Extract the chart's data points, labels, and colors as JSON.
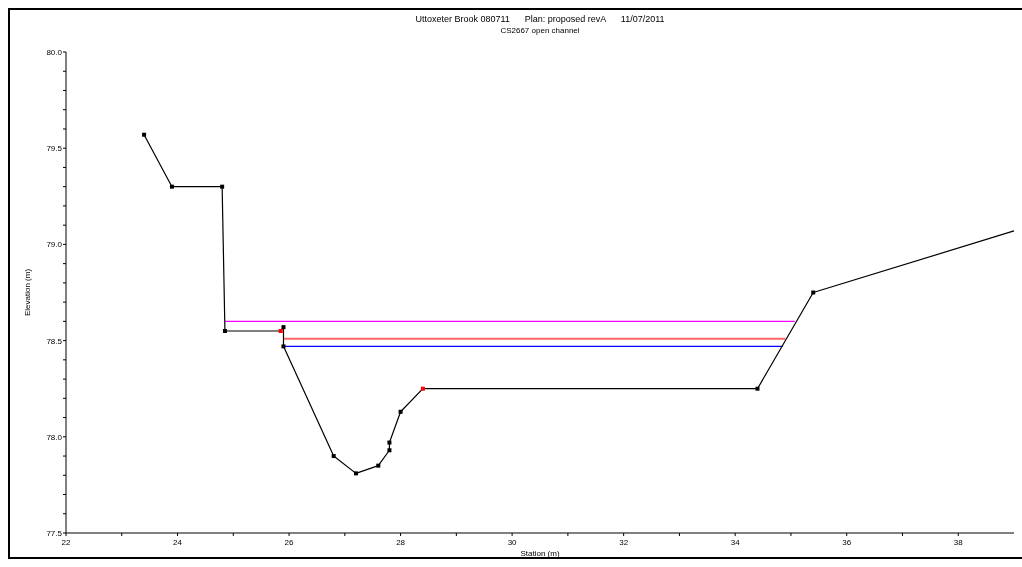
{
  "chart_data": {
    "type": "line",
    "title": "Uttoxeter Brook 080711      Plan: proposed revA      11/07/2011",
    "subtitle": "CS2667 open channel",
    "xlabel": "Station (m)",
    "ylabel": "Elevation (m)",
    "xlim": [
      22,
      39
    ],
    "ylim": [
      77.5,
      80.0
    ],
    "xticks": [
      22,
      {
        "value": 23,
        "label": null
      },
      24,
      {
        "value": 25,
        "label": null
      },
      26,
      {
        "value": 27,
        "label": null
      },
      28,
      {
        "value": 29,
        "label": null
      },
      30,
      {
        "value": 31,
        "label": null
      },
      32,
      {
        "value": 33,
        "label": null
      },
      34,
      {
        "value": 35,
        "label": null
      },
      36,
      {
        "value": 37,
        "label": null
      },
      38
    ],
    "yticks": [
      {
        "value": 77.5,
        "label": "77.5"
      },
      {
        "value": 77.6,
        "label": null
      },
      {
        "value": 77.7,
        "label": null
      },
      {
        "value": 77.8,
        "label": null
      },
      {
        "value": 77.9,
        "label": null
      },
      {
        "value": 78.0,
        "label": "78.0"
      },
      {
        "value": 78.1,
        "label": null
      },
      {
        "value": 78.2,
        "label": null
      },
      {
        "value": 78.3,
        "label": null
      },
      {
        "value": 78.4,
        "label": null
      },
      {
        "value": 78.5,
        "label": "78.5"
      },
      {
        "value": 78.6,
        "label": null
      },
      {
        "value": 78.7,
        "label": null
      },
      {
        "value": 78.8,
        "label": null
      },
      {
        "value": 78.9,
        "label": null
      },
      {
        "value": 79.0,
        "label": "79.0"
      },
      {
        "value": 79.1,
        "label": null
      },
      {
        "value": 79.2,
        "label": null
      },
      {
        "value": 79.3,
        "label": null
      },
      {
        "value": 79.4,
        "label": null
      },
      {
        "value": 79.5,
        "label": "79.5"
      },
      {
        "value": 79.6,
        "label": null
      },
      {
        "value": 79.7,
        "label": null
      },
      {
        "value": 79.8,
        "label": null
      },
      {
        "value": 79.9,
        "label": null
      },
      {
        "value": 80.0,
        "label": "80.0"
      }
    ],
    "grid": false,
    "line_style": "solid",
    "series": [
      {
        "type": "line",
        "color": "#ff00ff",
        "x": [
          24.85,
          35.07
        ],
        "values": [
          78.6,
          78.6
        ],
        "marker": "none"
      },
      {
        "type": "line",
        "color": "#ff6666",
        "x": [
          25.9,
          34.9
        ],
        "values": [
          78.51,
          78.51
        ],
        "marker": "none"
      },
      {
        "type": "line",
        "color": "#0000ff",
        "x": [
          25.9,
          34.85
        ],
        "values": [
          78.47,
          78.47
        ],
        "marker": "none"
      },
      {
        "type": "line",
        "color": "#000000",
        "marker": "square",
        "x": [
          23.4,
          23.9,
          24.8,
          24.85,
          25.85,
          25.9,
          25.9,
          26.8,
          27.2,
          27.6,
          27.8,
          27.8,
          28.0,
          28.4,
          34.4,
          35.4,
          39.0
        ],
        "values": [
          79.57,
          79.3,
          79.3,
          78.55,
          78.55,
          78.57,
          78.47,
          77.9,
          77.81,
          77.85,
          77.93,
          77.97,
          78.13,
          78.25,
          78.25,
          78.75,
          79.07
        ],
        "colors": [
          "#000000",
          "#000000",
          "#000000",
          "#000000",
          "#ff0000",
          "#000000",
          "#000000",
          "#000000",
          "#000000",
          "#000000",
          "#000000",
          "#000000",
          "#000000",
          "#ff0000",
          "#000000",
          "#000000",
          null
        ]
      }
    ]
  }
}
